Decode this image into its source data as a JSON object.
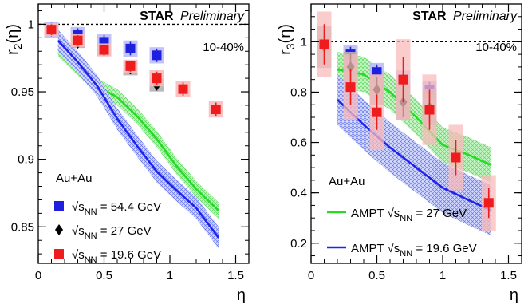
{
  "chart_data": [
    {
      "type": "scatter",
      "banner_bold": "STAR",
      "banner_italic": "Preliminary",
      "centrality": "10-40%",
      "system": "Au+Au",
      "ylabel": "r2(η)",
      "ylabel_base": "r",
      "ylabel_sub": "2",
      "ylabel_arg": "(η)",
      "xlabel": "η",
      "xlim": [
        0,
        1.6
      ],
      "ylim": [
        0.823,
        1.015
      ],
      "xticks": [
        0,
        0.5,
        1,
        1.5
      ],
      "yticks": [
        0.85,
        0.9,
        0.95,
        1
      ],
      "xtick_labels": [
        "0",
        "0.5",
        "1",
        "1.5"
      ],
      "ytick_labels": [
        "0.85",
        "0.9",
        "0.95",
        "1"
      ],
      "reference_line": 1,
      "legend_position": "bottom-left",
      "series": [
        {
          "name": "√sNN = 54.4 GeV",
          "legend_prefix": "√s",
          "legend_sub": "NN",
          "legend_suffix": " = 54.4 GeV",
          "color": "#1f1fe0",
          "marker": "square",
          "x": [
            0.1,
            0.3,
            0.5,
            0.7,
            0.9
          ],
          "y": [
            0.996,
            0.992,
            0.987,
            0.982,
            0.977
          ],
          "err": [
            0.005,
            0.005,
            0.005,
            0.005,
            0.005
          ]
        },
        {
          "name": "√sNN = 27 GeV",
          "legend_prefix": "√s",
          "legend_sub": "NN",
          "legend_suffix": " = 27 GeV",
          "color": "#000000",
          "marker": "diamond",
          "x": [
            0.1,
            0.3,
            0.5,
            0.7,
            0.9
          ],
          "y": [
            0.996,
            0.986,
            0.98,
            0.967,
            0.955
          ],
          "err": [
            0.003,
            0.003,
            0.003,
            0.004,
            0.004
          ]
        },
        {
          "name": "√sNN = 19.6 GeV",
          "legend_prefix": "√s",
          "legend_sub": "NN",
          "legend_suffix": " = 19.6 GeV",
          "color": "#ee1c1c",
          "marker": "square",
          "x": [
            0.1,
            0.3,
            0.5,
            0.7,
            0.9,
            1.1,
            1.35
          ],
          "y": [
            0.996,
            0.988,
            0.981,
            0.969,
            0.96,
            0.952,
            0.937
          ],
          "err": [
            0.004,
            0.004,
            0.004,
            0.004,
            0.005,
            0.005,
            0.005
          ]
        }
      ],
      "model_bands": [
        {
          "color": "#22dd22",
          "x": [
            0.15,
            0.3,
            0.45,
            0.6,
            0.75,
            0.9,
            1.05,
            1.2,
            1.37
          ],
          "y": [
            0.982,
            0.968,
            0.954,
            0.946,
            0.932,
            0.915,
            0.895,
            0.878,
            0.862
          ],
          "width": 0.006
        },
        {
          "color": "#2222ee",
          "x": [
            0.15,
            0.3,
            0.45,
            0.6,
            0.75,
            0.9,
            1.05,
            1.2,
            1.37
          ],
          "y": [
            0.988,
            0.972,
            0.954,
            0.93,
            0.91,
            0.891,
            0.877,
            0.864,
            0.842
          ],
          "width": 0.008
        }
      ]
    },
    {
      "type": "scatter",
      "banner_bold": "STAR",
      "banner_italic": "Preliminary",
      "centrality": "10-40%",
      "system": "Au+Au",
      "ylabel": "r3(η)",
      "ylabel_base": "r",
      "ylabel_sub": "3",
      "ylabel_arg": "(η)",
      "xlabel": "η",
      "xlim": [
        0,
        1.6
      ],
      "ylim": [
        0.12,
        1.15
      ],
      "xticks": [
        0,
        0.5,
        1,
        1.5
      ],
      "yticks": [
        0.2,
        0.4,
        0.6,
        0.8,
        1
      ],
      "xtick_labels": [
        "0",
        "0.5",
        "1",
        "1.5"
      ],
      "ytick_labels": [
        "0.2",
        "0.4",
        "0.6",
        "0.8",
        "1"
      ],
      "reference_line": 1,
      "legend_position": "bottom-left",
      "series": [
        {
          "color": "#1f1fe0",
          "marker": "square",
          "x": [
            0.1,
            0.3,
            0.5,
            0.7,
            0.9
          ],
          "y": [
            0.99,
            0.95,
            0.88,
            0.85,
            0.81
          ],
          "err": [
            0.03,
            0.03,
            0.03,
            0.03,
            0.03
          ]
        },
        {
          "color": "#000000",
          "marker": "diamond",
          "x": [
            0.1,
            0.3,
            0.5,
            0.7,
            0.9
          ],
          "y": [
            0.98,
            0.9,
            0.81,
            0.76,
            0.74
          ],
          "err": [
            0.07,
            0.05,
            0.05,
            0.06,
            0.06
          ]
        },
        {
          "color": "#ee1c1c",
          "marker": "square",
          "x": [
            0.1,
            0.3,
            0.5,
            0.7,
            0.9,
            1.1,
            1.35
          ],
          "y": [
            0.99,
            0.82,
            0.72,
            0.85,
            0.73,
            0.54,
            0.36
          ],
          "err": [
            0.08,
            0.07,
            0.07,
            0.09,
            0.08,
            0.07,
            0.06
          ],
          "sys": [
            0.13,
            0.13,
            0.15,
            0.16,
            0.14,
            0.13,
            0.11
          ]
        }
      ],
      "model_bands": [
        {
          "name": "AMPT √sNN = 27 GeV",
          "legend_prefix": "AMPT √s",
          "legend_sub": "NN",
          "legend_suffix": " = 27 GeV",
          "color": "#22dd22",
          "x": [
            0.2,
            0.4,
            0.6,
            0.8,
            1.0,
            1.2,
            1.37
          ],
          "y": [
            0.89,
            0.87,
            0.8,
            0.7,
            0.59,
            0.55,
            0.51
          ],
          "width": 0.07
        },
        {
          "name": "AMPT √sNN = 19.6 GeV",
          "legend_prefix": "AMPT √s",
          "legend_sub": "NN",
          "legend_suffix": " = 19.6 GeV",
          "color": "#2222ee",
          "x": [
            0.2,
            0.4,
            0.6,
            0.8,
            1.0,
            1.2,
            1.37
          ],
          "y": [
            0.77,
            0.67,
            0.58,
            0.5,
            0.42,
            0.37,
            0.33
          ],
          "width": 0.1
        }
      ]
    }
  ]
}
